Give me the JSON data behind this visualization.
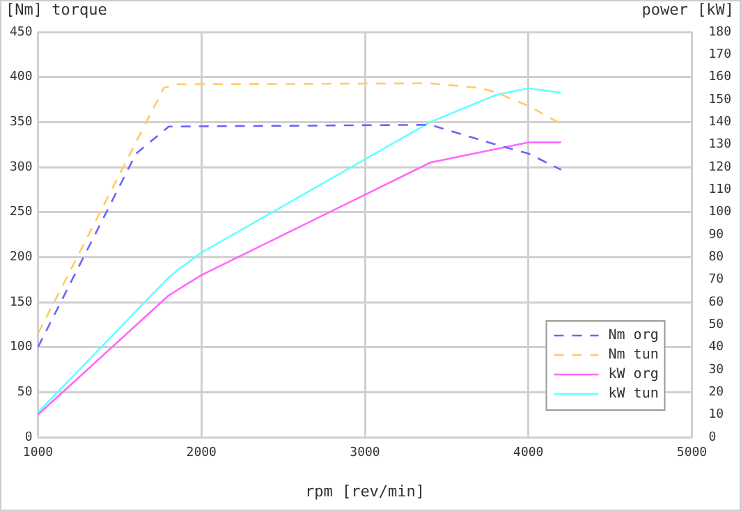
{
  "chart_data": {
    "type": "line",
    "xlabel": "rpm [rev/min]",
    "ylabel": "[Nm] torque",
    "y2label": "power [kW]",
    "xlim": [
      1000,
      5000
    ],
    "xticks": [
      1000,
      2000,
      3000,
      4000,
      5000
    ],
    "ylim": [
      0,
      450
    ],
    "yticks": [
      0,
      50,
      100,
      150,
      200,
      250,
      300,
      350,
      400,
      450
    ],
    "y2lim": [
      0,
      180
    ],
    "y2ticks": [
      0,
      10,
      20,
      30,
      40,
      50,
      60,
      70,
      80,
      90,
      100,
      110,
      120,
      130,
      140,
      150,
      160,
      170,
      180
    ],
    "grid": true,
    "legend": "bottom right",
    "marker": "none",
    "series": [
      {
        "name": "Nm org",
        "color": "#6666ff",
        "line_style": "dashed",
        "x": [
          1000,
          1600,
          1800,
          3400,
          3800,
          4000,
          4200
        ],
        "values": [
          100,
          315,
          345,
          347,
          325,
          315,
          297
        ]
      },
      {
        "name": "Nm tun",
        "color": "#ffcc66",
        "line_style": "dashed",
        "x": [
          1000,
          1770,
          1850,
          3400,
          3700,
          3800,
          4000,
          4200
        ],
        "values": [
          115,
          388,
          392,
          393,
          388,
          383,
          368,
          348
        ]
      },
      {
        "name": "kW org",
        "color": "#ff66ff",
        "line_style": "solid",
        "axis": "y2",
        "x": [
          1000,
          1800,
          2000,
          3400,
          4000,
          4200
        ],
        "values": [
          10,
          63,
          72,
          122,
          131,
          131
        ]
      },
      {
        "name": "kW tun",
        "color": "#66ffff",
        "line_style": "solid",
        "axis": "y2",
        "x": [
          1000,
          1800,
          1850,
          2000,
          3400,
          3800,
          4000,
          4200
        ],
        "values": [
          11,
          71,
          74,
          82,
          140,
          152,
          155,
          153
        ]
      }
    ]
  }
}
